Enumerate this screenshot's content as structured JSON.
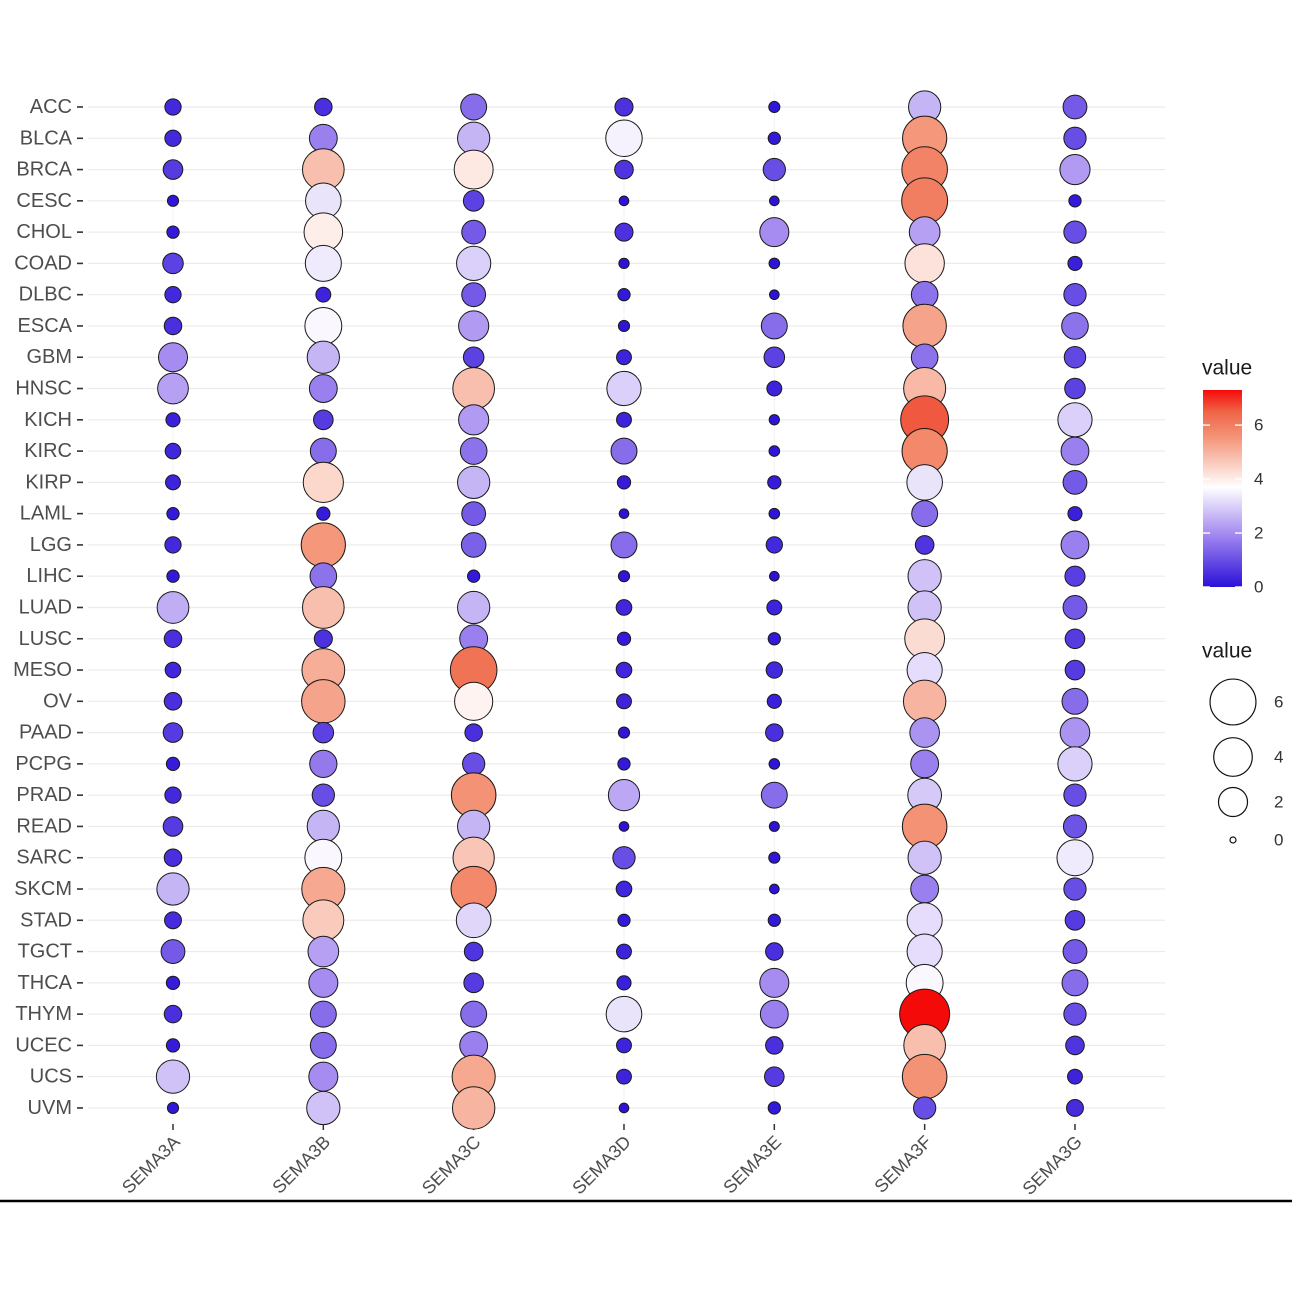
{
  "chart_data": {
    "type": "scatter",
    "x_categories": [
      "SEMA3A",
      "SEMA3B",
      "SEMA3C",
      "SEMA3D",
      "SEMA3E",
      "SEMA3F",
      "SEMA3G"
    ],
    "y_categories": [
      "ACC",
      "BLCA",
      "BRCA",
      "CESC",
      "CHOL",
      "COAD",
      "DLBC",
      "ESCA",
      "GBM",
      "HNSC",
      "KICH",
      "KIRC",
      "KIRP",
      "LAML",
      "LGG",
      "LIHC",
      "LUAD",
      "LUSC",
      "MESO",
      "OV",
      "PAAD",
      "PCPG",
      "PRAD",
      "READ",
      "SARC",
      "SKCM",
      "STAD",
      "TGCT",
      "THCA",
      "THYM",
      "UCEC",
      "UCS",
      "UVM"
    ],
    "values": [
      [
        0.4,
        0.5,
        1.5,
        0.55,
        0.1,
        2.6,
        1.2
      ],
      [
        0.4,
        1.8,
        2.6,
        3.5,
        0.15,
        5.5,
        1.0
      ],
      [
        0.7,
        4.8,
        4.1,
        0.6,
        1.0,
        5.9,
        2.2
      ],
      [
        0.1,
        3.3,
        0.8,
        0.05,
        0.05,
        6.0,
        0.15
      ],
      [
        0.15,
        4.0,
        1.2,
        0.55,
        2.0,
        2.3,
        1.0
      ],
      [
        0.8,
        3.4,
        3.0,
        0.07,
        0.08,
        4.2,
        0.25
      ],
      [
        0.4,
        0.3,
        1.2,
        0.15,
        0.05,
        1.6,
        1.0
      ],
      [
        0.5,
        3.6,
        2.2,
        0.1,
        1.5,
        5.3,
        1.6
      ],
      [
        2.0,
        2.6,
        0.8,
        0.3,
        0.8,
        1.6,
        0.9
      ],
      [
        2.3,
        1.8,
        4.8,
        3.0,
        0.3,
        4.9,
        0.8
      ],
      [
        0.25,
        0.7,
        2.2,
        0.3,
        0.07,
        6.6,
        3.0
      ],
      [
        0.35,
        1.5,
        1.6,
        1.5,
        0.08,
        5.8,
        1.8
      ],
      [
        0.3,
        4.4,
        2.6,
        0.2,
        0.2,
        3.3,
        1.2
      ],
      [
        0.15,
        0.2,
        1.2,
        0.05,
        0.08,
        1.5,
        0.25
      ],
      [
        0.4,
        5.5,
        1.3,
        1.5,
        0.4,
        0.6,
        1.8
      ],
      [
        0.15,
        1.6,
        0.15,
        0.1,
        0.05,
        2.8,
        0.75
      ],
      [
        2.5,
        4.8,
        2.6,
        0.35,
        0.3,
        2.8,
        1.2
      ],
      [
        0.5,
        0.55,
        1.8,
        0.2,
        0.15,
        4.3,
        0.7
      ],
      [
        0.35,
        5.1,
        6.2,
        0.35,
        0.4,
        3.2,
        0.7
      ],
      [
        0.5,
        5.3,
        3.9,
        0.3,
        0.25,
        5.0,
        1.5
      ],
      [
        0.7,
        0.8,
        0.5,
        0.1,
        0.5,
        2.1,
        2.1
      ],
      [
        0.2,
        1.7,
        1.0,
        0.15,
        0.08,
        1.8,
        3.0
      ],
      [
        0.4,
        1.0,
        5.6,
        2.4,
        1.5,
        2.9,
        1.0
      ],
      [
        0.7,
        2.6,
        2.6,
        0.05,
        0.06,
        5.6,
        1.1
      ],
      [
        0.5,
        3.6,
        4.7,
        1.0,
        0.1,
        2.8,
        3.4
      ],
      [
        2.6,
        5.2,
        5.8,
        0.35,
        0.05,
        1.8,
        1.0
      ],
      [
        0.45,
        4.6,
        3.1,
        0.15,
        0.15,
        3.2,
        0.7
      ],
      [
        1.2,
        2.3,
        0.6,
        0.3,
        0.5,
        3.2,
        1.2
      ],
      [
        0.2,
        2.0,
        0.7,
        0.25,
        2.0,
        3.6,
        1.5
      ],
      [
        0.5,
        1.5,
        1.5,
        3.3,
        1.8,
        7.3,
        1.0
      ],
      [
        0.2,
        1.5,
        1.8,
        0.3,
        0.5,
        4.8,
        0.6
      ],
      [
        2.8,
        2.0,
        5.2,
        0.3,
        0.7,
        5.6,
        0.3
      ],
      [
        0.1,
        2.8,
        5.0,
        0.05,
        0.15,
        1.0,
        0.45
      ]
    ],
    "value_range": [
      0,
      7.3
    ],
    "grid": true,
    "legend": {
      "placement": "right",
      "color": {
        "title": "value",
        "breaks": [
          6,
          4,
          2,
          0
        ],
        "scale": [
          {
            "value": 0,
            "color": "#2A10D8"
          },
          {
            "value": 2,
            "color": "#A68CF0"
          },
          {
            "value": 3.7,
            "color": "#FFFFFF"
          },
          {
            "value": 5.5,
            "color": "#F4977B"
          },
          {
            "value": 6.5,
            "color": "#EF6446"
          },
          {
            "value": 7.3,
            "color": "#F50A0A"
          }
        ]
      },
      "size": {
        "title": "value",
        "breaks": [
          6,
          4,
          2,
          0
        ]
      }
    }
  },
  "colors": {
    "dot_outline": "#1a1a1a",
    "gridline": "#EBEBEB",
    "axis_text": "#4D4D4D"
  }
}
